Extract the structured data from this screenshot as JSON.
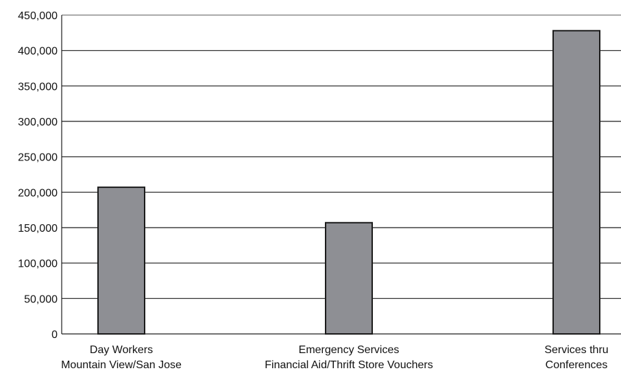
{
  "chart_data": {
    "type": "bar",
    "categories": [
      [
        "Day Workers",
        "Mountain View/San Jose"
      ],
      [
        "Emergency Services",
        "Financial Aid/Thrift Store Vouchers"
      ],
      [
        "Services thru",
        "Conferences"
      ]
    ],
    "values": [
      207000,
      157000,
      428000
    ],
    "ylim": [
      0,
      450000
    ],
    "yticks": [
      "0",
      "50,000",
      "100,000",
      "150,000",
      "200,000",
      "250,000",
      "300,000",
      "350,000",
      "400,000",
      "450,000"
    ],
    "ytick_values": [
      0,
      50000,
      100000,
      150000,
      200000,
      250000,
      300000,
      350000,
      400000,
      450000
    ],
    "grid": true,
    "bar_color": "#8e8f94",
    "bar_border_color": "#1a1a1a",
    "title": "",
    "xlabel": "",
    "ylabel": ""
  }
}
